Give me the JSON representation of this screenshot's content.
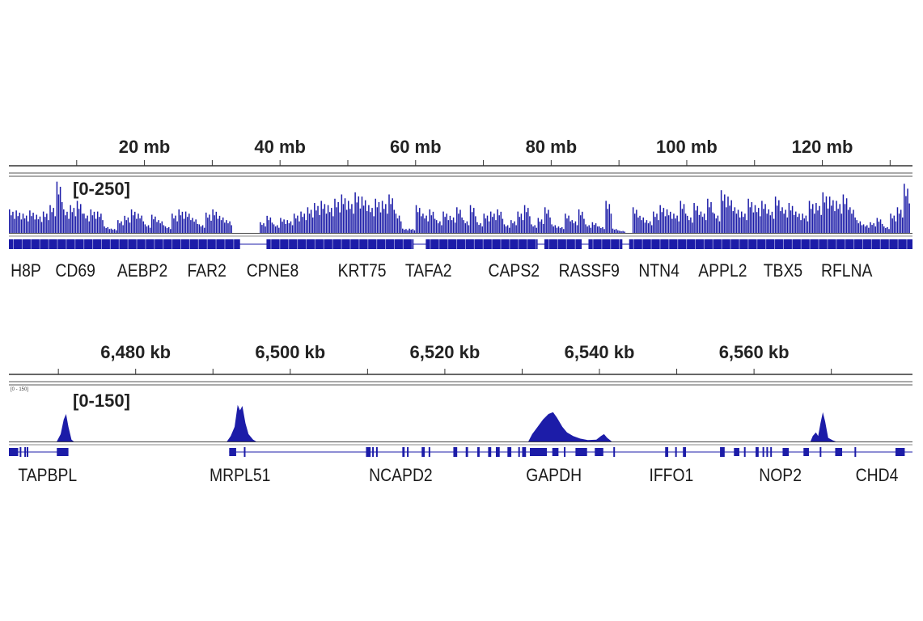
{
  "colors": {
    "signal": "#1c1ca8",
    "axis": "#333333",
    "text": "#222222"
  },
  "chart_data": [
    {
      "type": "bar",
      "xlabel": "",
      "ylabel": "",
      "x_unit": "mb",
      "xlim": [
        0,
        133.3
      ],
      "ylim": [
        0,
        250
      ],
      "data_range_label": "[0-250]",
      "tick_labels": [
        "20 mb",
        "40 mb",
        "60 mb",
        "80 mb",
        "100 mb",
        "120 mb"
      ],
      "tick_values": [
        20,
        40,
        60,
        80,
        100,
        120
      ],
      "minor_ticks": [
        10,
        20,
        30,
        40,
        50,
        60,
        70,
        80,
        90,
        100,
        110,
        120,
        130
      ],
      "bin_size_mb": 1,
      "values": [
        110,
        105,
        90,
        105,
        85,
        100,
        130,
        240,
        110,
        130,
        150,
        90,
        110,
        100,
        30,
        20,
        60,
        80,
        110,
        90,
        40,
        85,
        60,
        30,
        90,
        110,
        100,
        70,
        40,
        95,
        110,
        80,
        60,
        0,
        0,
        0,
        0,
        50,
        80,
        40,
        70,
        60,
        90,
        100,
        120,
        140,
        150,
        130,
        160,
        180,
        150,
        190,
        170,
        130,
        160,
        150,
        180,
        90,
        20,
        20,
        130,
        90,
        110,
        60,
        100,
        80,
        120,
        60,
        130,
        50,
        90,
        100,
        110,
        40,
        60,
        100,
        130,
        40,
        70,
        120,
        40,
        30,
        90,
        60,
        110,
        40,
        50,
        30,
        150,
        20,
        10,
        0,
        120,
        80,
        60,
        100,
        130,
        110,
        90,
        150,
        80,
        140,
        100,
        160,
        90,
        200,
        170,
        120,
        100,
        160,
        130,
        150,
        110,
        170,
        120,
        140,
        100,
        90,
        150,
        140,
        190,
        170,
        150,
        180,
        120,
        60,
        40,
        50,
        70,
        30,
        90,
        120,
        230
      ],
      "gene_blocks": [
        [
          0,
          34.1
        ],
        [
          38,
          59.7
        ],
        [
          61.5,
          78
        ],
        [
          79,
          84.5
        ],
        [
          85.5,
          90.5
        ],
        [
          91.5,
          133.3
        ]
      ],
      "genes": [
        {
          "name": "H8P",
          "pos": 2.5
        },
        {
          "name": "CD69",
          "pos": 9.8
        },
        {
          "name": "AEBP2",
          "pos": 19.7
        },
        {
          "name": "FAR2",
          "pos": 29.2
        },
        {
          "name": "CPNE8",
          "pos": 38.9
        },
        {
          "name": "KRT75",
          "pos": 52.1
        },
        {
          "name": "TAFA2",
          "pos": 61.9
        },
        {
          "name": "CAPS2",
          "pos": 74.5
        },
        {
          "name": "RASSF9",
          "pos": 85.6
        },
        {
          "name": "NTN4",
          "pos": 95.9
        },
        {
          "name": "APPL2",
          "pos": 105.3
        },
        {
          "name": "TBX5",
          "pos": 114.2
        },
        {
          "name": "RFLNA",
          "pos": 123.6
        }
      ]
    },
    {
      "type": "area",
      "xlabel": "",
      "ylabel": "",
      "x_unit": "kb",
      "xlim": [
        6463.6,
        6580.5
      ],
      "ylim": [
        0,
        150
      ],
      "data_range_label": "[0-150]",
      "small_range_label": "[0 - 150]",
      "tick_labels": [
        "6,480 kb",
        "6,500 kb",
        "6,520 kb",
        "6,540 kb",
        "6,560 kb"
      ],
      "tick_values": [
        6480,
        6500,
        6520,
        6540,
        6560
      ],
      "minor_ticks": [
        6470,
        6480,
        6490,
        6500,
        6510,
        6520,
        6530,
        6540,
        6550,
        6560,
        6570
      ],
      "peaks": [
        [
          [
            6469.8,
            0
          ],
          [
            6470.3,
            20
          ],
          [
            6470.7,
            60
          ],
          [
            6471.0,
            75
          ],
          [
            6471.3,
            40
          ],
          [
            6471.7,
            5
          ],
          [
            6472.0,
            0
          ]
        ],
        [
          [
            6491.8,
            0
          ],
          [
            6492.3,
            15
          ],
          [
            6492.8,
            40
          ],
          [
            6493.2,
            100
          ],
          [
            6493.5,
            85
          ],
          [
            6493.8,
            97
          ],
          [
            6494.2,
            50
          ],
          [
            6494.6,
            20
          ],
          [
            6495.2,
            5
          ],
          [
            6495.6,
            0
          ]
        ],
        [
          [
            6530.8,
            0
          ],
          [
            6531.3,
            20
          ],
          [
            6532.0,
            40
          ],
          [
            6532.7,
            60
          ],
          [
            6533.4,
            75
          ],
          [
            6534.0,
            80
          ],
          [
            6534.5,
            65
          ],
          [
            6535.2,
            40
          ],
          [
            6535.8,
            25
          ],
          [
            6536.6,
            15
          ],
          [
            6537.5,
            8
          ],
          [
            6538.5,
            4
          ],
          [
            6539.6,
            5
          ],
          [
            6540.2,
            15
          ],
          [
            6540.6,
            20
          ],
          [
            6541.0,
            10
          ],
          [
            6541.6,
            0
          ]
        ],
        [
          [
            6567.3,
            0
          ],
          [
            6567.6,
            15
          ],
          [
            6568.0,
            25
          ],
          [
            6568.3,
            15
          ],
          [
            6568.6,
            50
          ],
          [
            6568.9,
            80
          ],
          [
            6569.2,
            55
          ],
          [
            6569.6,
            10
          ],
          [
            6570.2,
            3
          ],
          [
            6570.6,
            0
          ]
        ]
      ],
      "gene_lines": [
        [
          6463.6,
          6471.3
        ],
        [
          6492.1,
          6580.5
        ]
      ],
      "exons": [
        [
          6463.6,
          6464.8
        ],
        [
          6465.0,
          6465.2
        ],
        [
          6465.6,
          6465.7
        ],
        [
          6465.9,
          6466.0
        ],
        [
          6469.8,
          6471.3
        ],
        [
          6492.1,
          6493.0
        ],
        [
          6494.0,
          6494.2
        ],
        [
          6509.8,
          6510.4
        ],
        [
          6510.6,
          6510.8
        ],
        [
          6511.1,
          6511.3
        ],
        [
          6514.5,
          6514.8
        ],
        [
          6515.1,
          6515.3
        ],
        [
          6517.0,
          6517.4
        ],
        [
          6517.9,
          6518.1
        ],
        [
          6521.1,
          6521.6
        ],
        [
          6522.7,
          6523.0
        ],
        [
          6524.2,
          6524.5
        ],
        [
          6525.6,
          6526.0
        ],
        [
          6526.6,
          6527.1
        ],
        [
          6528.1,
          6528.6
        ],
        [
          6529.5,
          6529.7
        ],
        [
          6530.0,
          6530.5
        ],
        [
          6531.0,
          6533.2
        ],
        [
          6533.9,
          6534.7
        ],
        [
          6535.4,
          6535.6
        ],
        [
          6536.9,
          6538.4
        ],
        [
          6539.4,
          6540.5
        ],
        [
          6541.8,
          6542.0
        ],
        [
          6548.5,
          6548.9
        ],
        [
          6549.8,
          6550.0
        ],
        [
          6550.8,
          6551.2
        ],
        [
          6555.6,
          6556.2
        ],
        [
          6557.4,
          6558.1
        ],
        [
          6558.7,
          6558.9
        ],
        [
          6560.2,
          6560.6
        ],
        [
          6561.1,
          6561.3
        ],
        [
          6561.6,
          6561.8
        ],
        [
          6562.1,
          6562.3
        ],
        [
          6563.7,
          6564.5
        ],
        [
          6566.4,
          6567.1
        ],
        [
          6568.5,
          6568.7
        ],
        [
          6570.5,
          6571.4
        ],
        [
          6573.0,
          6573.2
        ],
        [
          6578.3,
          6579.5
        ]
      ],
      "genes": [
        {
          "name": "TAPBPL",
          "pos": 6468.6
        },
        {
          "name": "MRPL51",
          "pos": 6493.5
        },
        {
          "name": "NCAPD2",
          "pos": 6514.3
        },
        {
          "name": "GAPDH",
          "pos": 6534.1
        },
        {
          "name": "IFFO1",
          "pos": 6549.3
        },
        {
          "name": "NOP2",
          "pos": 6563.4
        },
        {
          "name": "CHD4",
          "pos": 6575.9
        }
      ]
    }
  ]
}
